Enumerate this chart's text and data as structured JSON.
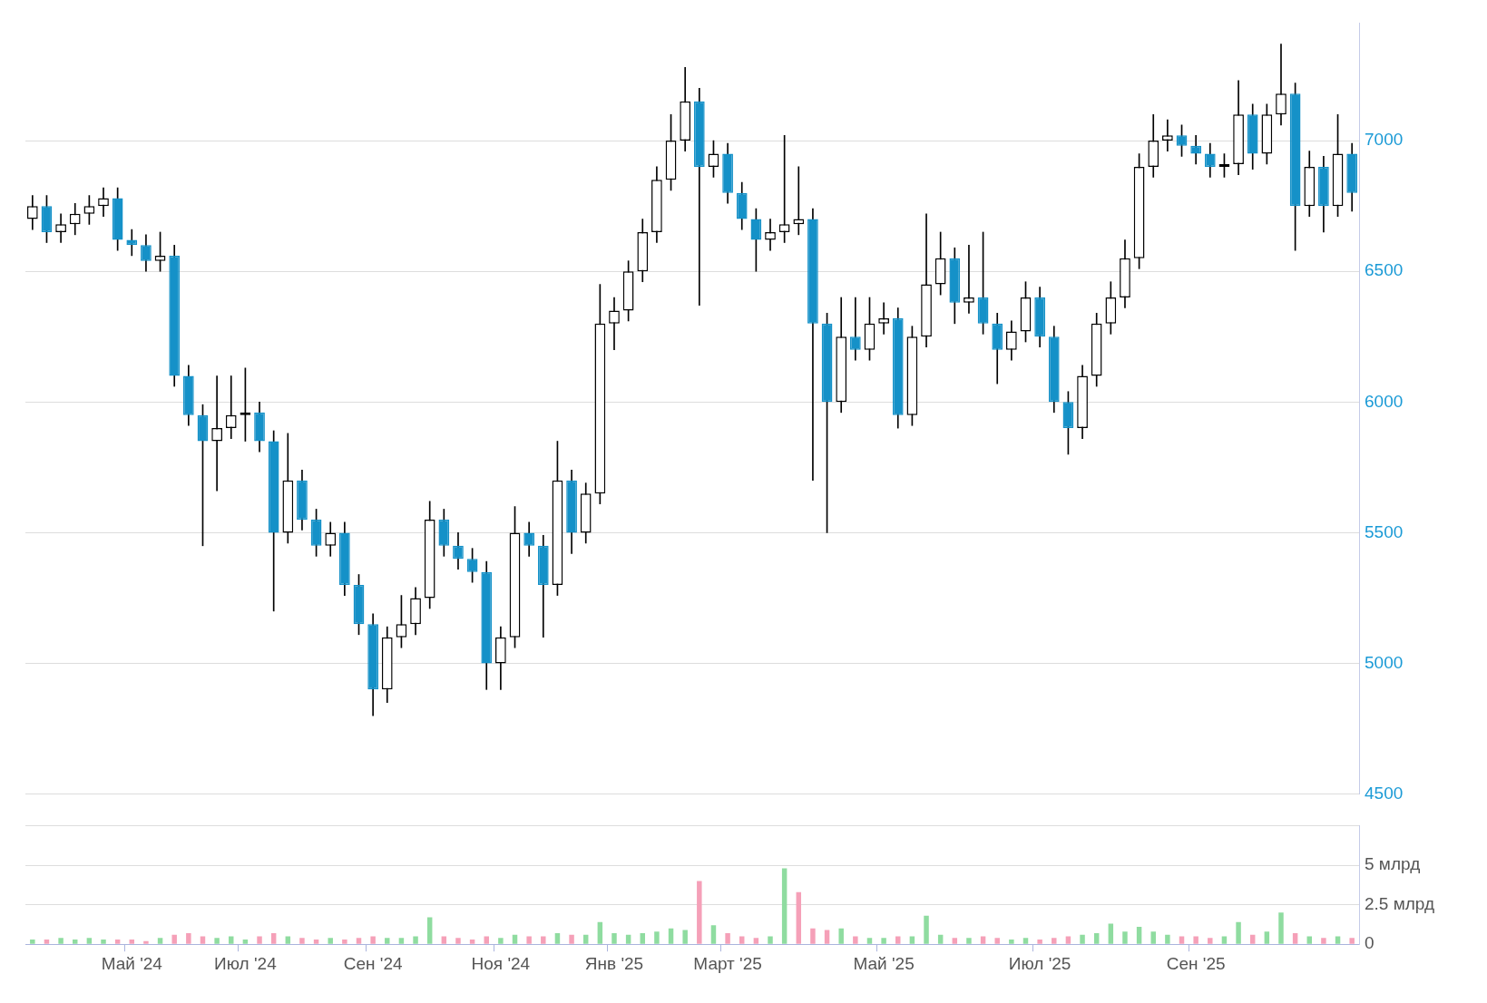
{
  "chart_data": [
    {
      "type": "candlestick",
      "tick_labels": "y",
      "grid": "y",
      "categories": [
        null,
        null,
        null,
        null,
        null,
        null,
        null,
        null,
        null,
        null,
        null,
        null,
        null,
        null,
        null,
        null,
        null,
        null,
        null,
        null,
        null,
        null,
        null,
        null,
        null,
        null,
        null,
        null,
        null,
        null,
        null,
        null,
        null,
        null,
        null,
        null,
        null,
        null,
        null,
        null,
        null,
        null,
        null,
        null,
        null,
        null,
        null,
        null,
        null,
        null,
        null,
        null,
        null,
        null,
        null,
        null,
        null,
        null,
        null,
        null,
        null,
        null,
        null,
        null,
        null,
        null,
        null,
        null,
        null,
        null,
        null,
        null,
        null,
        null,
        null,
        null,
        null,
        null,
        null,
        null,
        null,
        null,
        null,
        null,
        null,
        null,
        null,
        null,
        null,
        null,
        null,
        null,
        null,
        null
      ],
      "ohlc": [
        [
          6700,
          6790,
          6660,
          6750
        ],
        [
          6750,
          6790,
          6610,
          6650
        ],
        [
          6650,
          6720,
          6610,
          6680
        ],
        [
          6680,
          6760,
          6640,
          6720
        ],
        [
          6720,
          6790,
          6680,
          6750
        ],
        [
          6750,
          6820,
          6710,
          6780
        ],
        [
          6780,
          6820,
          6580,
          6620
        ],
        [
          6620,
          6660,
          6560,
          6600
        ],
        [
          6600,
          6640,
          6500,
          6540
        ],
        [
          6540,
          6650,
          6500,
          6560
        ],
        [
          6560,
          6600,
          6060,
          6100
        ],
        [
          6100,
          6140,
          5910,
          5950
        ],
        [
          5950,
          5990,
          5450,
          5850
        ],
        [
          5850,
          6100,
          5660,
          5900
        ],
        [
          5900,
          6100,
          5860,
          5950
        ],
        [
          5950,
          6130,
          5850,
          5960
        ],
        [
          5960,
          6000,
          5810,
          5850
        ],
        [
          5850,
          5890,
          5200,
          5500
        ],
        [
          5500,
          5880,
          5460,
          5700
        ],
        [
          5700,
          5740,
          5510,
          5550
        ],
        [
          5550,
          5590,
          5410,
          5450
        ],
        [
          5450,
          5540,
          5410,
          5500
        ],
        [
          5500,
          5540,
          5260,
          5300
        ],
        [
          5300,
          5340,
          5110,
          5150
        ],
        [
          5150,
          5190,
          4800,
          4900
        ],
        [
          4900,
          5140,
          4850,
          5100
        ],
        [
          5100,
          5260,
          5060,
          5150
        ],
        [
          5150,
          5290,
          5110,
          5250
        ],
        [
          5250,
          5620,
          5210,
          5550
        ],
        [
          5550,
          5590,
          5410,
          5450
        ],
        [
          5450,
          5500,
          5360,
          5400
        ],
        [
          5400,
          5440,
          5310,
          5350
        ],
        [
          5350,
          5390,
          4900,
          5000
        ],
        [
          5000,
          5140,
          4900,
          5100
        ],
        [
          5100,
          5600,
          5060,
          5500
        ],
        [
          5500,
          5540,
          5410,
          5450
        ],
        [
          5450,
          5490,
          5100,
          5300
        ],
        [
          5300,
          5850,
          5260,
          5700
        ],
        [
          5700,
          5740,
          5420,
          5500
        ],
        [
          5500,
          5690,
          5460,
          5650
        ],
        [
          5650,
          6450,
          5610,
          6300
        ],
        [
          6300,
          6400,
          6200,
          6350
        ],
        [
          6350,
          6540,
          6310,
          6500
        ],
        [
          6500,
          6700,
          6460,
          6650
        ],
        [
          6650,
          6900,
          6610,
          6850
        ],
        [
          6850,
          7100,
          6810,
          7000
        ],
        [
          7000,
          7280,
          6960,
          7150
        ],
        [
          7150,
          7200,
          6370,
          6900
        ],
        [
          6900,
          7000,
          6860,
          6950
        ],
        [
          6950,
          6990,
          6760,
          6800
        ],
        [
          6800,
          6840,
          6660,
          6700
        ],
        [
          6700,
          6740,
          6500,
          6620
        ],
        [
          6620,
          6700,
          6580,
          6650
        ],
        [
          6650,
          7020,
          6610,
          6680
        ],
        [
          6680,
          6900,
          6640,
          6700
        ],
        [
          6700,
          6740,
          5700,
          6300
        ],
        [
          6300,
          6340,
          5500,
          6000
        ],
        [
          6000,
          6400,
          5960,
          6250
        ],
        [
          6250,
          6400,
          6160,
          6200
        ],
        [
          6200,
          6400,
          6160,
          6300
        ],
        [
          6300,
          6380,
          6260,
          6320
        ],
        [
          6320,
          6360,
          5900,
          5950
        ],
        [
          5950,
          6290,
          5910,
          6250
        ],
        [
          6250,
          6720,
          6210,
          6450
        ],
        [
          6450,
          6650,
          6410,
          6550
        ],
        [
          6550,
          6590,
          6300,
          6380
        ],
        [
          6380,
          6600,
          6340,
          6400
        ],
        [
          6400,
          6650,
          6260,
          6300
        ],
        [
          6300,
          6340,
          6070,
          6200
        ],
        [
          6200,
          6310,
          6160,
          6270
        ],
        [
          6270,
          6460,
          6230,
          6400
        ],
        [
          6400,
          6440,
          6210,
          6250
        ],
        [
          6250,
          6290,
          5960,
          6000
        ],
        [
          6000,
          6040,
          5800,
          5900
        ],
        [
          5900,
          6140,
          5860,
          6100
        ],
        [
          6100,
          6340,
          6060,
          6300
        ],
        [
          6300,
          6460,
          6260,
          6400
        ],
        [
          6400,
          6620,
          6360,
          6550
        ],
        [
          6550,
          6950,
          6510,
          6900
        ],
        [
          6900,
          7100,
          6860,
          7000
        ],
        [
          7000,
          7080,
          6960,
          7020
        ],
        [
          7020,
          7060,
          6940,
          6980
        ],
        [
          6980,
          7020,
          6910,
          6950
        ],
        [
          6950,
          6990,
          6860,
          6900
        ],
        [
          6900,
          6950,
          6860,
          6910
        ],
        [
          6910,
          7230,
          6870,
          7100
        ],
        [
          7100,
          7140,
          6890,
          6950
        ],
        [
          6950,
          7140,
          6910,
          7100
        ],
        [
          7100,
          7370,
          7060,
          7180
        ],
        [
          7180,
          7220,
          6580,
          6750
        ],
        [
          6750,
          6960,
          6710,
          6900
        ],
        [
          6900,
          6940,
          6650,
          6750
        ],
        [
          6750,
          7100,
          6710,
          6950
        ],
        [
          6950,
          6990,
          6730,
          6800
        ]
      ],
      "colors": [
        "#000000",
        "#1591c8",
        "#000000",
        "#000000",
        "#000000",
        "#000000",
        "#1591c8",
        "#1591c8",
        "#1591c8",
        "#000000",
        "#1591c8",
        "#1591c8",
        "#1591c8",
        "#000000",
        "#000000",
        "#000000",
        "#1591c8",
        "#1591c8",
        "#000000",
        "#1591c8",
        "#1591c8",
        "#000000",
        "#1591c8",
        "#1591c8",
        "#1591c8",
        "#000000",
        "#000000",
        "#000000",
        "#000000",
        "#1591c8",
        "#1591c8",
        "#1591c8",
        "#1591c8",
        "#000000",
        "#000000",
        "#1591c8",
        "#1591c8",
        "#000000",
        "#1591c8",
        "#000000",
        "#000000",
        "#000000",
        "#000000",
        "#000000",
        "#000000",
        "#000000",
        "#000000",
        "#1591c8",
        "#000000",
        "#1591c8",
        "#1591c8",
        "#1591c8",
        "#000000",
        "#000000",
        "#000000",
        "#1591c8",
        "#1591c8",
        "#000000",
        "#1591c8",
        "#000000",
        "#000000",
        "#1591c8",
        "#000000",
        "#000000",
        "#000000",
        "#1591c8",
        "#000000",
        "#1591c8",
        "#1591c8",
        "#000000",
        "#000000",
        "#1591c8",
        "#1591c8",
        "#1591c8",
        "#000000",
        "#000000",
        "#000000",
        "#000000",
        "#000000",
        "#000000",
        "#000000",
        "#1591c8",
        "#1591c8",
        "#1591c8",
        "#000000",
        "#000000",
        "#1591c8",
        "#000000",
        "#000000",
        "#1591c8",
        "#000000",
        "#1591c8",
        "#000000",
        "#1591c8"
      ],
      "ylim": [
        4500,
        7450
      ],
      "yticks": [
        4500,
        5000,
        5500,
        6000,
        6500,
        7000
      ]
    },
    {
      "type": "bar",
      "grid": "y",
      "categories": [
        null,
        null,
        null,
        null,
        null,
        null,
        null,
        "Май '24",
        null,
        null,
        null,
        null,
        null,
        null,
        null,
        "Июл '24",
        null,
        null,
        null,
        null,
        null,
        null,
        null,
        null,
        "Сен '24",
        null,
        null,
        null,
        null,
        null,
        null,
        null,
        null,
        "Ноя '24",
        null,
        null,
        null,
        null,
        null,
        null,
        null,
        "Янв '25",
        null,
        null,
        null,
        null,
        null,
        null,
        null,
        "Март '25",
        null,
        null,
        null,
        null,
        null,
        null,
        null,
        null,
        null,
        null,
        "Май '25",
        null,
        null,
        null,
        null,
        null,
        null,
        null,
        null,
        null,
        null,
        "Июл '25",
        null,
        null,
        null,
        null,
        null,
        null,
        null,
        null,
        null,
        null,
        "Сен '25",
        null,
        null,
        null,
        null,
        null,
        null,
        null,
        null,
        null,
        null,
        null
      ],
      "values": [
        0.3,
        0.3,
        0.4,
        0.3,
        0.4,
        0.3,
        0.3,
        0.3,
        0.2,
        0.4,
        0.6,
        0.7,
        0.5,
        0.4,
        0.5,
        0.3,
        0.5,
        0.7,
        0.5,
        0.4,
        0.3,
        0.4,
        0.3,
        0.4,
        0.5,
        0.4,
        0.4,
        0.5,
        1.7,
        0.5,
        0.4,
        0.3,
        0.5,
        0.4,
        0.6,
        0.5,
        0.5,
        0.7,
        0.6,
        0.6,
        1.4,
        0.7,
        0.6,
        0.7,
        0.8,
        1.0,
        0.9,
        4.0,
        1.2,
        0.7,
        0.5,
        0.4,
        0.5,
        4.8,
        3.3,
        1.0,
        0.9,
        1.0,
        0.5,
        0.4,
        0.4,
        0.5,
        0.5,
        1.8,
        0.6,
        0.4,
        0.4,
        0.5,
        0.4,
        0.3,
        0.4,
        0.3,
        0.4,
        0.5,
        0.6,
        0.7,
        1.3,
        0.8,
        1.1,
        0.8,
        0.6,
        0.5,
        0.5,
        0.4,
        0.5,
        1.4,
        0.6,
        0.8,
        2.0,
        0.7,
        0.5,
        0.4,
        0.5,
        0.4
      ],
      "colors": [
        "#8fdca0",
        "#f5a0b8",
        "#8fdca0",
        "#8fdca0",
        "#8fdca0",
        "#8fdca0",
        "#f5a0b8",
        "#f5a0b8",
        "#f5a0b8",
        "#8fdca0",
        "#f5a0b8",
        "#f5a0b8",
        "#f5a0b8",
        "#8fdca0",
        "#8fdca0",
        "#8fdca0",
        "#f5a0b8",
        "#f5a0b8",
        "#8fdca0",
        "#f5a0b8",
        "#f5a0b8",
        "#8fdca0",
        "#f5a0b8",
        "#f5a0b8",
        "#f5a0b8",
        "#8fdca0",
        "#8fdca0",
        "#8fdca0",
        "#8fdca0",
        "#f5a0b8",
        "#f5a0b8",
        "#f5a0b8",
        "#f5a0b8",
        "#8fdca0",
        "#8fdca0",
        "#f5a0b8",
        "#f5a0b8",
        "#8fdca0",
        "#f5a0b8",
        "#8fdca0",
        "#8fdca0",
        "#8fdca0",
        "#8fdca0",
        "#8fdca0",
        "#8fdca0",
        "#8fdca0",
        "#8fdca0",
        "#f5a0b8",
        "#8fdca0",
        "#f5a0b8",
        "#f5a0b8",
        "#f5a0b8",
        "#8fdca0",
        "#8fdca0",
        "#f5a0b8",
        "#f5a0b8",
        "#f5a0b8",
        "#8fdca0",
        "#f5a0b8",
        "#8fdca0",
        "#8fdca0",
        "#f5a0b8",
        "#8fdca0",
        "#8fdca0",
        "#8fdca0",
        "#f5a0b8",
        "#8fdca0",
        "#f5a0b8",
        "#f5a0b8",
        "#8fdca0",
        "#8fdca0",
        "#f5a0b8",
        "#f5a0b8",
        "#f5a0b8",
        "#8fdca0",
        "#8fdca0",
        "#8fdca0",
        "#8fdca0",
        "#8fdca0",
        "#8fdca0",
        "#8fdca0",
        "#f5a0b8",
        "#f5a0b8",
        "#f5a0b8",
        "#8fdca0",
        "#8fdca0",
        "#f5a0b8",
        "#8fdca0",
        "#8fdca0",
        "#f5a0b8",
        "#8fdca0",
        "#f5a0b8",
        "#8fdca0",
        "#f5a0b8"
      ],
      "ylim": [
        0,
        7.5
      ],
      "yticks": [
        0,
        {
          "value": 2.5,
          "label": "2.5 млрд"
        },
        {
          "value": 5,
          "label": "5 млрд"
        },
        {
          "value": 7.5,
          "label": null
        }
      ]
    }
  ]
}
